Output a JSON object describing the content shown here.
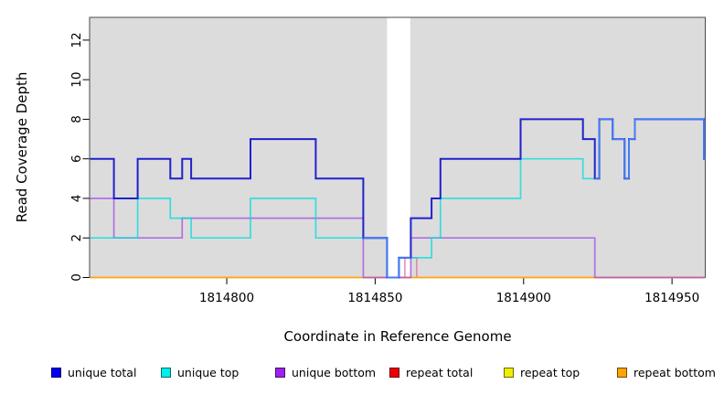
{
  "chart_data": {
    "type": "line",
    "subtype": "step-coverage",
    "title": "",
    "xlabel": "Coordinate in Reference Genome",
    "ylabel": "Read Coverage Depth",
    "xlim": [
      1814753.8,
      1814961.2
    ],
    "ylim": [
      0,
      13.15
    ],
    "x_ticks": [
      1814800,
      1814850,
      1814900,
      1814950
    ],
    "y_ticks": [
      0,
      2,
      4,
      6,
      8,
      10,
      12
    ],
    "grid": false,
    "legend_position": "bottom-horizontal",
    "panel_background": "#DCDCDC",
    "panel_border_color": "#4A4A4A",
    "masked_region": {
      "from": 1814854,
      "to": 1814861.8,
      "color": "#FFFFFF"
    },
    "overlap_note": "where unique top equals unique total the line renders bright blue",
    "overlap_highlight_color": "#447BF2",
    "series": [
      {
        "name": "unique total",
        "line_color": "#2121CC",
        "legend_color": "#0000EE",
        "width": 2,
        "opacity": 1,
        "steps": [
          [
            1814754,
            6
          ],
          [
            1814762,
            4
          ],
          [
            1814770,
            6
          ],
          [
            1814781,
            5
          ],
          [
            1814785,
            6
          ],
          [
            1814788,
            5
          ],
          [
            1814808,
            7
          ],
          [
            1814830,
            5
          ],
          [
            1814846,
            2
          ],
          [
            1814854,
            0
          ],
          [
            1814858,
            1
          ],
          [
            1814862,
            3
          ],
          [
            1814869,
            4
          ],
          [
            1814872,
            6
          ],
          [
            1814899,
            8
          ],
          [
            1814920,
            7
          ],
          [
            1814924,
            5
          ],
          [
            1814925.5,
            8
          ],
          [
            1814930,
            7
          ],
          [
            1814934,
            5
          ],
          [
            1814935.5,
            7
          ],
          [
            1814937.5,
            8
          ],
          [
            1814960.8,
            6
          ]
        ]
      },
      {
        "name": "unique top",
        "line_color": "#00DCDC",
        "legend_color": "#00EEEE",
        "width": 1.7,
        "opacity": 0.75,
        "steps": [
          [
            1814754,
            2
          ],
          [
            1814770,
            4
          ],
          [
            1814781,
            3
          ],
          [
            1814788,
            2
          ],
          [
            1814808,
            4
          ],
          [
            1814830,
            2
          ],
          [
            1814854,
            0
          ],
          [
            1814858,
            1
          ],
          [
            1814869,
            2
          ],
          [
            1814872,
            4
          ],
          [
            1814899,
            6
          ],
          [
            1814920,
            5
          ],
          [
            1814925.5,
            8
          ],
          [
            1814930,
            7
          ],
          [
            1814934,
            5
          ],
          [
            1814935.5,
            7
          ],
          [
            1814937.5,
            8
          ],
          [
            1814960.8,
            6
          ]
        ]
      },
      {
        "name": "unique bottom",
        "line_color": "#A24CE8",
        "legend_color": "#A020F0",
        "width": 1.7,
        "opacity": 0.75,
        "steps": [
          [
            1814754,
            4
          ],
          [
            1814762,
            2
          ],
          [
            1814785,
            3
          ],
          [
            1814846,
            0
          ],
          [
            1814862,
            2
          ],
          [
            1814924,
            0
          ]
        ]
      },
      {
        "name": "repeat total",
        "line_color": "#E4679F",
        "legend_color": "#EE0000",
        "width": 1.3,
        "opacity": 0.9,
        "steps": [
          [
            1814754,
            0
          ],
          [
            1814860,
            1
          ],
          [
            1814864,
            0
          ]
        ]
      },
      {
        "name": "repeat top",
        "line_color": "#F0F000",
        "legend_color": "#EEEE00",
        "width": 1.3,
        "opacity": 1,
        "steps": [
          [
            1814754,
            0
          ]
        ]
      },
      {
        "name": "repeat bottom",
        "line_color": "#FFA510",
        "legend_color": "#FFA500",
        "width": 1.7,
        "opacity": 1,
        "steps": [
          [
            1814754,
            0
          ]
        ]
      }
    ]
  }
}
